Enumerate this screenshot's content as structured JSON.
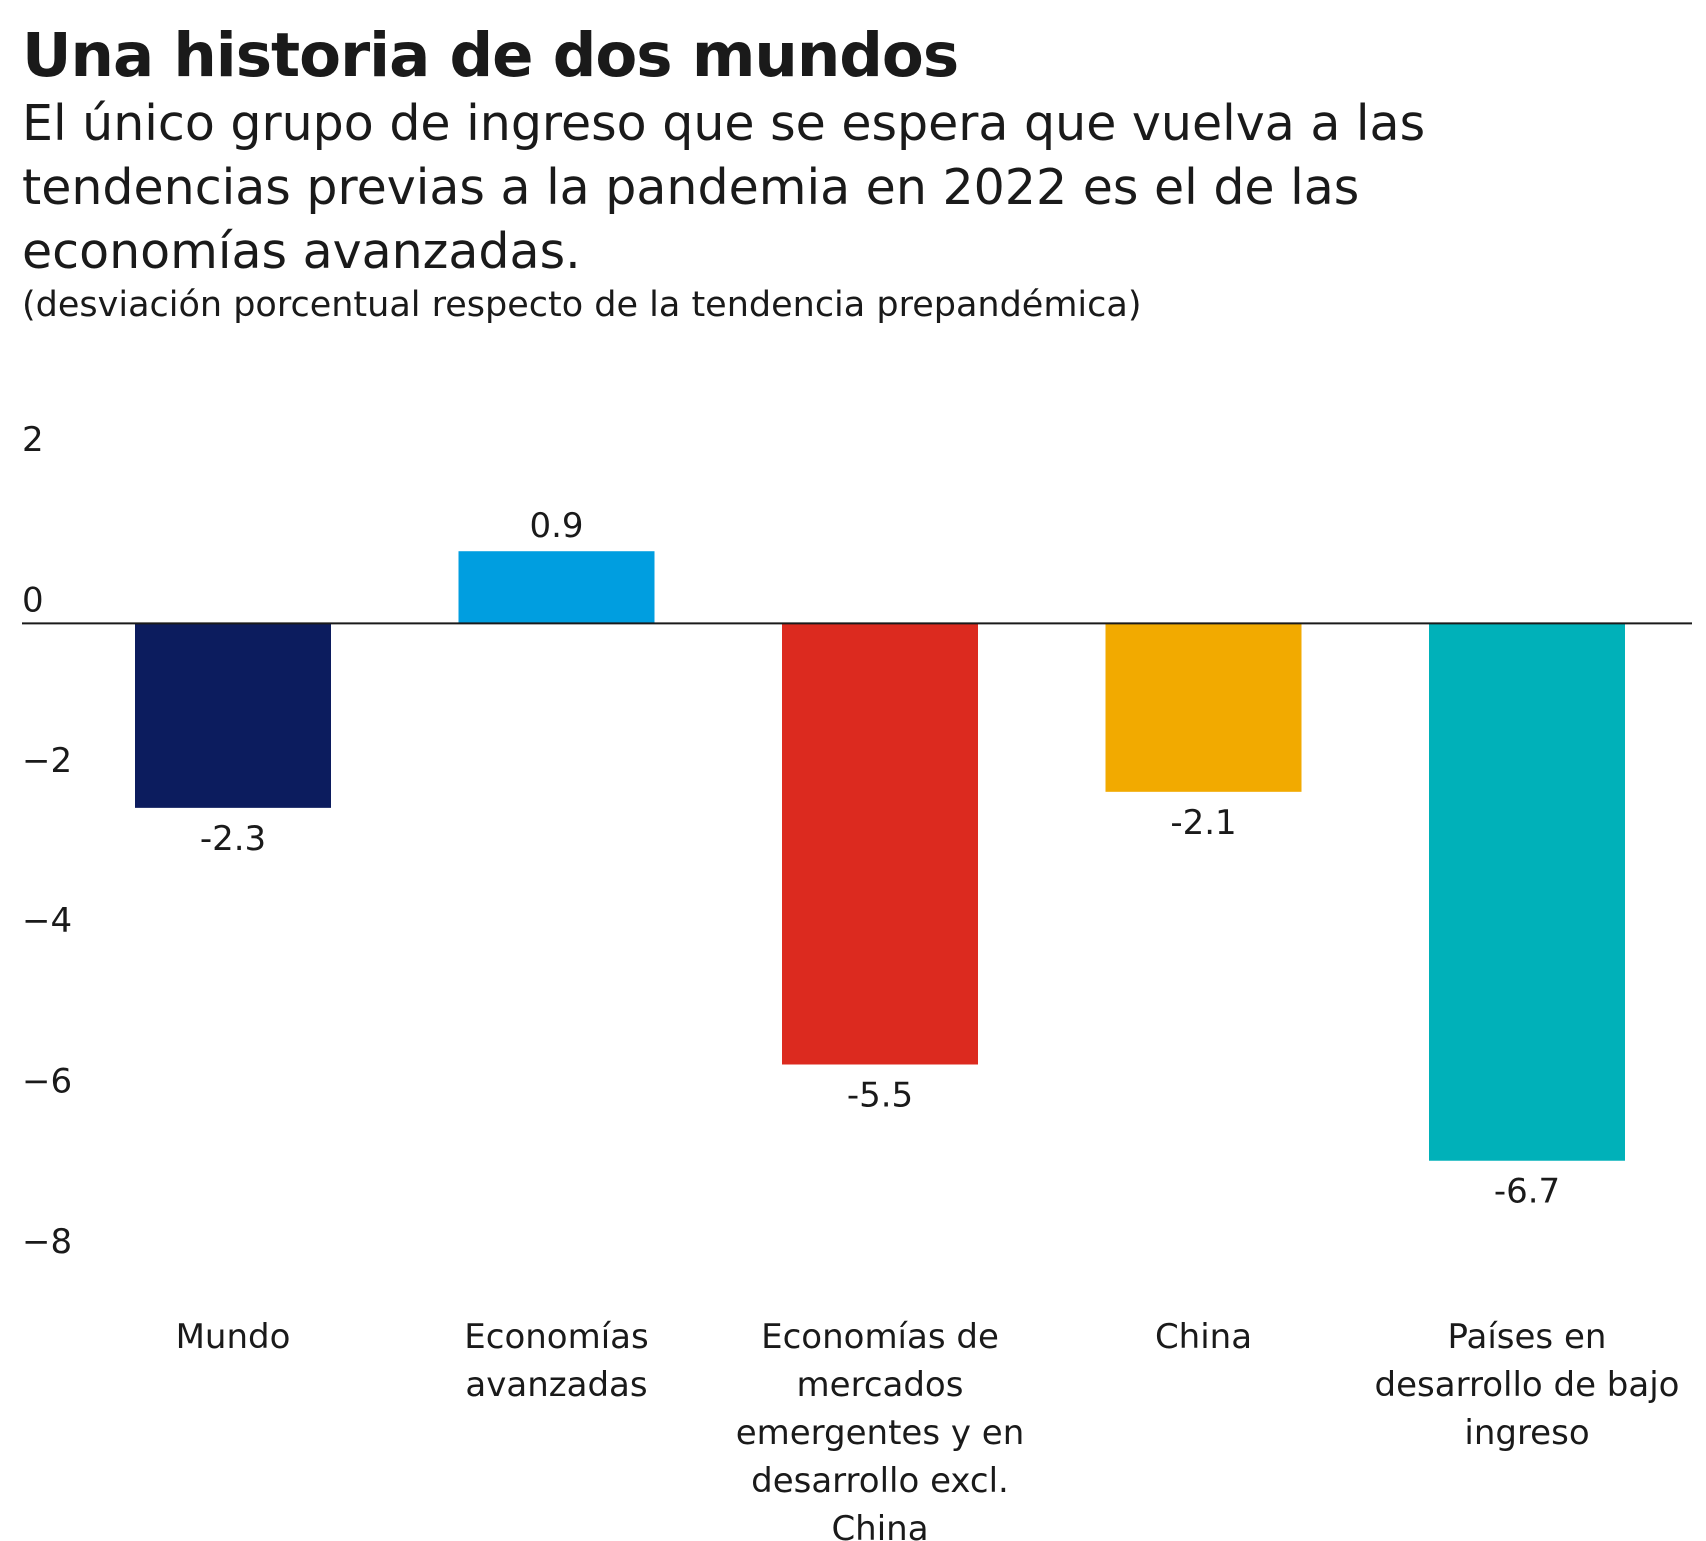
{
  "header": {
    "title": "Una historia de dos mundos",
    "subtitle": "El único grupo de ingreso que se espera que vuelva a las tendencias previas a la pandemia en 2022 es el de las economías avanzadas.",
    "note": "(desviación porcentual respecto de la tendencia prepandémica)"
  },
  "chart_data": {
    "type": "bar",
    "title": "Una historia de dos mundos",
    "subtitle": "El único grupo de ingreso que se espera que vuelva a las tendencias previas a la pandemia en 2022 es el de las economías avanzadas.",
    "ylabel": "(desviación porcentual respecto de la tendencia prepandémica)",
    "xlabel": "",
    "ylim": [
      -8,
      2
    ],
    "yticks": [
      2,
      0,
      -2,
      -4,
      -6,
      -8
    ],
    "grid": false,
    "legend": "none",
    "categories": [
      "Mundo",
      "Economías avanzadas",
      "Economías de mercados emergentes y en desarrollo excl. China",
      "China",
      "Países en desarrollo de bajo ingreso"
    ],
    "category_lines": [
      [
        "Mundo"
      ],
      [
        "Economías",
        "avanzadas"
      ],
      [
        "Economías de",
        "mercados",
        "emergentes y en",
        "desarrollo excl.",
        "China"
      ],
      [
        "China"
      ],
      [
        "Países en",
        "desarrollo de bajo",
        "ingreso"
      ]
    ],
    "values": [
      -2.3,
      0.9,
      -5.5,
      -2.1,
      -6.7
    ],
    "value_labels": [
      "-2.3",
      "0.9",
      "-5.5",
      "-2.1",
      "-6.7"
    ],
    "colors": [
      "#0c1c5e",
      "#009ee0",
      "#dc2a1f",
      "#f2aa00",
      "#00b1b9"
    ]
  }
}
